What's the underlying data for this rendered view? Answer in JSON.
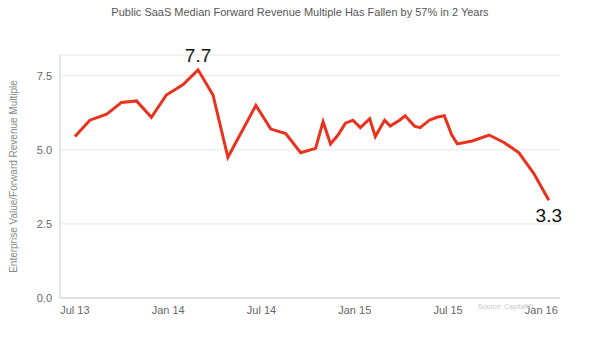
{
  "chart_data": {
    "type": "line",
    "title": "Public SaaS Median Forward Revenue Multiple Has Fallen by 57% in 2 Years",
    "y_label": "Enterprise Value/Forward Revenue Multiple",
    "source": "Source: CapitalIQ",
    "x": [
      2013.5,
      2013.58,
      2013.67,
      2013.75,
      2013.83,
      2013.91,
      2013.99,
      2014.08,
      2014.16,
      2014.24,
      2014.32,
      2014.47,
      2014.55,
      2014.63,
      2014.71,
      2014.79,
      2014.83,
      2014.87,
      2014.91,
      2014.95,
      2014.99,
      2015.03,
      2015.08,
      2015.11,
      2015.16,
      2015.19,
      2015.24,
      2015.27,
      2015.32,
      2015.35,
      2015.4,
      2015.44,
      2015.48,
      2015.52,
      2015.55,
      2015.63,
      2015.72,
      2015.8,
      2015.88,
      2015.96,
      2016.04
    ],
    "values": [
      5.45,
      6.0,
      6.2,
      6.6,
      6.65,
      6.1,
      6.85,
      7.2,
      7.7,
      6.85,
      4.75,
      6.5,
      5.7,
      5.55,
      4.9,
      5.05,
      5.95,
      5.2,
      5.5,
      5.9,
      6.0,
      5.75,
      6.05,
      5.45,
      6.0,
      5.8,
      6.0,
      6.15,
      5.8,
      5.75,
      6.0,
      6.1,
      6.15,
      5.5,
      5.2,
      5.3,
      5.5,
      5.25,
      4.9,
      4.2,
      3.3
    ],
    "color": "#e8321e",
    "xlim": [
      2013.42,
      2016.1
    ],
    "xticks": [
      {
        "value": 2013.5,
        "label": "Jul 13"
      },
      {
        "value": 2014.0,
        "label": "Jan 14"
      },
      {
        "value": 2014.5,
        "label": "Jul 14"
      },
      {
        "value": 2015.0,
        "label": "Jan 15"
      },
      {
        "value": 2015.5,
        "label": "Jul 15"
      },
      {
        "value": 2016.0,
        "label": "Jan 16"
      }
    ],
    "ylim": [
      0,
      8.2
    ],
    "yticks": [
      {
        "value": 0,
        "label": "0.0"
      },
      2.5,
      {
        "value": 5,
        "label": "5.0"
      },
      7.5
    ],
    "grid": true,
    "annotations": [
      {
        "text": "7.7",
        "x": 2014.16,
        "y": 7.7
      },
      {
        "text": "3.3",
        "x": 2016.04,
        "y": 3.3
      }
    ]
  }
}
